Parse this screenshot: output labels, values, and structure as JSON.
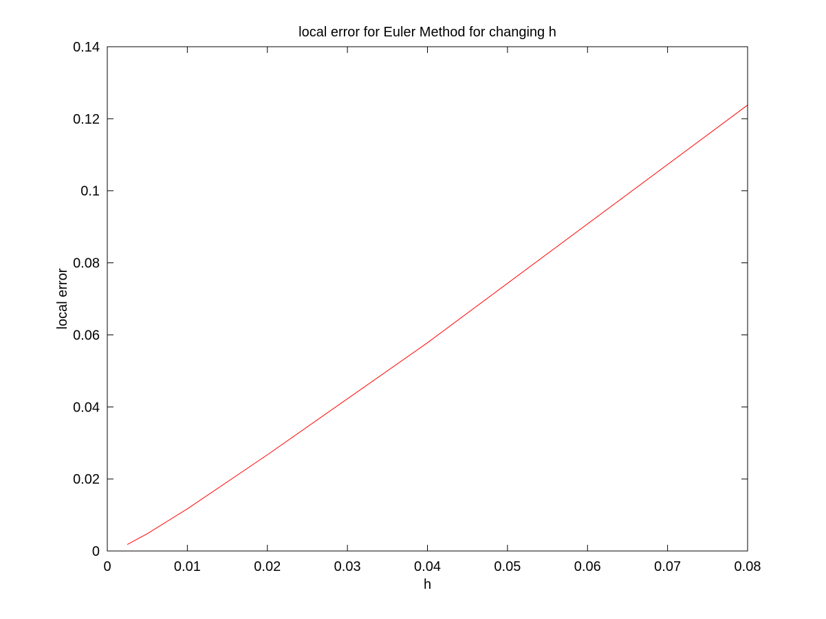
{
  "chart_data": {
    "type": "line",
    "title": "local error for Euler Method for changing h",
    "xlabel": "h",
    "ylabel": "local error",
    "xlim": [
      0,
      0.08
    ],
    "ylim": [
      0,
      0.14
    ],
    "xticks": [
      0,
      0.01,
      0.02,
      0.03,
      0.04,
      0.05,
      0.06,
      0.07,
      0.08
    ],
    "xtick_labels": [
      "0",
      "0.01",
      "0.02",
      "0.03",
      "0.04",
      "0.05",
      "0.06",
      "0.07",
      "0.08"
    ],
    "yticks": [
      0,
      0.02,
      0.04,
      0.06,
      0.08,
      0.1,
      0.12,
      0.14
    ],
    "ytick_labels": [
      "0",
      "0.02",
      "0.04",
      "0.06",
      "0.08",
      "0.1",
      "0.12",
      "0.14"
    ],
    "grid": false,
    "series": [
      {
        "color": "#ff0000",
        "x": [
          0.0025,
          0.005,
          0.01,
          0.02,
          0.04,
          0.08
        ],
        "y": [
          0.0018,
          0.0048,
          0.0117,
          0.0267,
          0.0578,
          0.1238
        ]
      }
    ]
  }
}
